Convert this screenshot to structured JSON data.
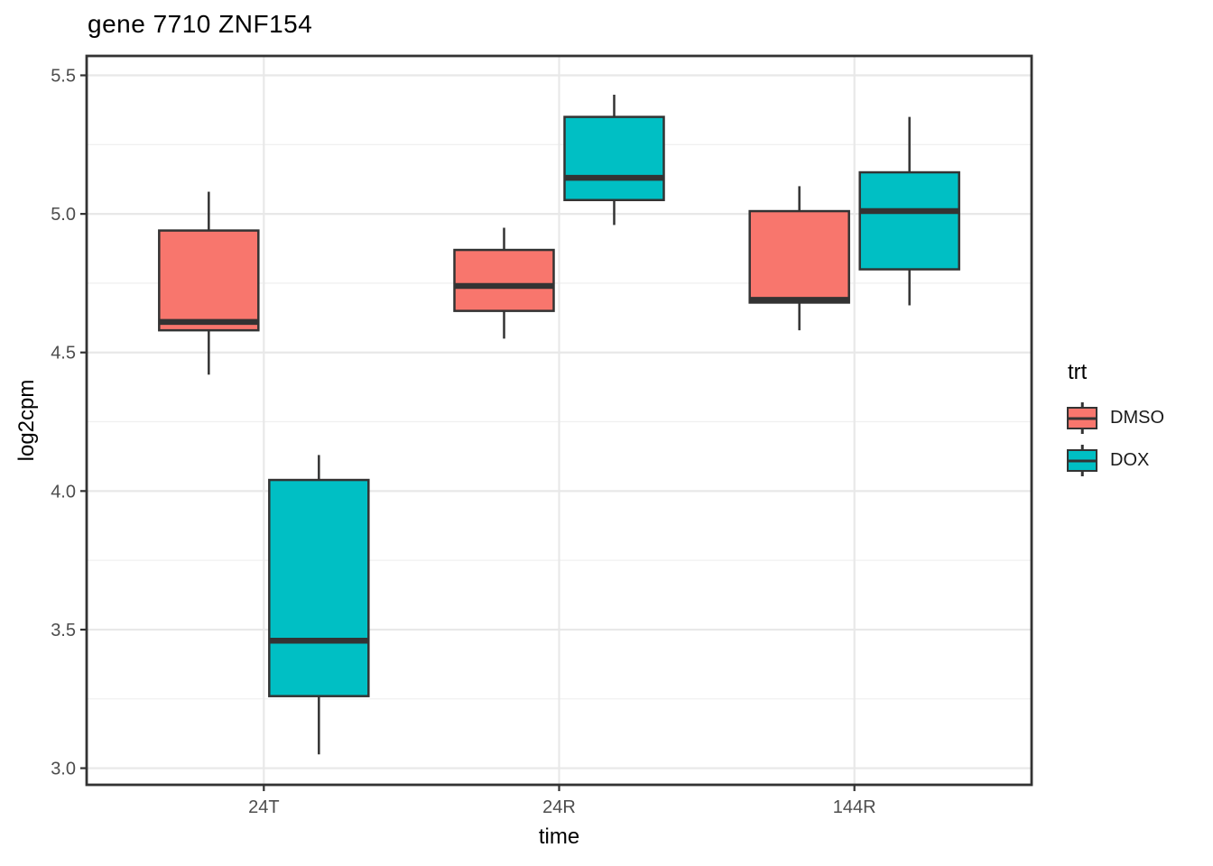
{
  "title": "gene 7710 ZNF154",
  "legend": {
    "title": "trt",
    "entries": [
      {
        "label": "DMSO",
        "color": "#F8766D"
      },
      {
        "label": "DOX",
        "color": "#00BFC4"
      }
    ]
  },
  "chart_data": {
    "type": "boxplot",
    "title": "gene 7710 ZNF154",
    "xlabel": "time",
    "ylabel": "log2cpm",
    "categories": [
      "24T",
      "24R",
      "144R"
    ],
    "y_ticks": [
      3.0,
      3.5,
      4.0,
      4.5,
      5.0,
      5.5
    ],
    "ylim": [
      2.94,
      5.57
    ],
    "grid": "horizontal major+minor, vertical major at categories",
    "legend_position": "right",
    "legend_title": "trt",
    "series": [
      {
        "name": "DMSO",
        "color": "#F8766D",
        "boxes": [
          {
            "category": "24T",
            "min": 4.42,
            "q1": 4.58,
            "median": 4.61,
            "q3": 4.94,
            "max": 5.08
          },
          {
            "category": "24R",
            "min": 4.55,
            "q1": 4.65,
            "median": 4.74,
            "q3": 4.87,
            "max": 4.95
          },
          {
            "category": "144R",
            "min": 4.58,
            "q1": 4.68,
            "median": 4.69,
            "q3": 5.01,
            "max": 5.1
          }
        ]
      },
      {
        "name": "DOX",
        "color": "#00BFC4",
        "boxes": [
          {
            "category": "24T",
            "min": 3.05,
            "q1": 3.26,
            "median": 3.46,
            "q3": 4.04,
            "max": 4.13
          },
          {
            "category": "24R",
            "min": 4.96,
            "q1": 5.05,
            "median": 5.13,
            "q3": 5.35,
            "max": 5.43
          },
          {
            "category": "144R",
            "min": 4.67,
            "q1": 4.8,
            "median": 5.01,
            "q3": 5.15,
            "max": 5.35
          }
        ]
      }
    ],
    "style": {
      "box_border_color": "#333333",
      "panel_border_color": "#333333",
      "grid_major_color": "#E8E8E8",
      "grid_minor_color": "#F0F0F0",
      "tick_label_color": "#4D4D4D",
      "background": "#FFFFFF"
    }
  }
}
